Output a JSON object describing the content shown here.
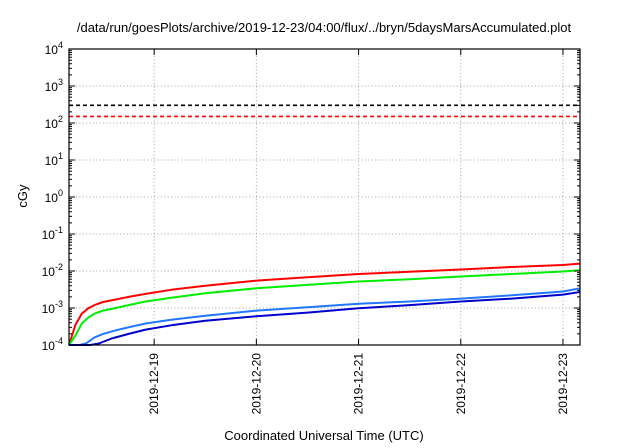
{
  "chart_data": {
    "type": "line",
    "title": "/data/run/goesPlots/archive/2019-12-23/04:00/flux/../bryn/5daysMarsAccumulated.plot",
    "xlabel": "Coordinated Universal Time (UTC)",
    "ylabel": "cGy",
    "yscale": "log",
    "ylim_exponents": [
      -4,
      4
    ],
    "yticks": [
      {
        "base": "10",
        "exp": "-4"
      },
      {
        "base": "10",
        "exp": "-3"
      },
      {
        "base": "10",
        "exp": "-2"
      },
      {
        "base": "10",
        "exp": "-1"
      },
      {
        "base": "10",
        "exp": "0"
      },
      {
        "base": "10",
        "exp": "1"
      },
      {
        "base": "10",
        "exp": "2"
      },
      {
        "base": "10",
        "exp": "3"
      },
      {
        "base": "10",
        "exp": "4"
      }
    ],
    "xlim": [
      "2019-12-18T04:00",
      "2019-12-23T04:00"
    ],
    "xticks": [
      "2019-12-19",
      "2019-12-20",
      "2019-12-21",
      "2019-12-22",
      "2019-12-23"
    ],
    "grid": true,
    "legend": "none",
    "reference_lines": [
      {
        "value": 300,
        "color": "#000000",
        "style": "dashed"
      },
      {
        "value": 150,
        "color": "#ff0000",
        "style": "dashed"
      }
    ],
    "series": [
      {
        "color": "#ff0000",
        "points": [
          [
            "2019-12-18T04:00",
            8e-05
          ],
          [
            "2019-12-18T05:30",
            0.00035
          ],
          [
            "2019-12-18T07:00",
            0.0007
          ],
          [
            "2019-12-18T08:30",
            0.00098
          ],
          [
            "2019-12-18T10:00",
            0.0012
          ],
          [
            "2019-12-18T12:00",
            0.00145
          ],
          [
            "2019-12-18T15:00",
            0.0017
          ],
          [
            "2019-12-18T18:00",
            0.002
          ],
          [
            "2019-12-18T22:00",
            0.0024
          ],
          [
            "2019-12-19T04:00",
            0.0031
          ],
          [
            "2019-12-19T12:00",
            0.004
          ],
          [
            "2019-12-20T00:00",
            0.0055
          ],
          [
            "2019-12-20T12:00",
            0.0068
          ],
          [
            "2019-12-21T00:00",
            0.0083
          ],
          [
            "2019-12-21T12:00",
            0.0095
          ],
          [
            "2019-12-22T00:00",
            0.011
          ],
          [
            "2019-12-22T12:00",
            0.0128
          ],
          [
            "2019-12-23T00:00",
            0.0145
          ],
          [
            "2019-12-23T04:00",
            0.0158
          ]
        ]
      },
      {
        "color": "#00ee00",
        "points": [
          [
            "2019-12-18T04:00",
            5e-05
          ],
          [
            "2019-12-18T05:30",
            0.00018
          ],
          [
            "2019-12-18T07:00",
            0.00038
          ],
          [
            "2019-12-18T08:30",
            0.00055
          ],
          [
            "2019-12-18T10:00",
            0.0007
          ],
          [
            "2019-12-18T12:00",
            0.00085
          ],
          [
            "2019-12-18T15:00",
            0.001
          ],
          [
            "2019-12-18T18:00",
            0.0012
          ],
          [
            "2019-12-18T22:00",
            0.0015
          ],
          [
            "2019-12-19T04:00",
            0.0019
          ],
          [
            "2019-12-19T12:00",
            0.0025
          ],
          [
            "2019-12-20T00:00",
            0.0034
          ],
          [
            "2019-12-20T12:00",
            0.0042
          ],
          [
            "2019-12-21T00:00",
            0.0052
          ],
          [
            "2019-12-21T12:00",
            0.006
          ],
          [
            "2019-12-22T00:00",
            0.0071
          ],
          [
            "2019-12-22T12:00",
            0.0083
          ],
          [
            "2019-12-23T00:00",
            0.0097
          ],
          [
            "2019-12-23T04:00",
            0.0105
          ]
        ]
      },
      {
        "color": "#2277ff",
        "points": [
          [
            "2019-12-18T04:00",
            2e-05
          ],
          [
            "2019-12-18T06:30",
            5e-05
          ],
          [
            "2019-12-18T08:00",
            0.00011
          ],
          [
            "2019-12-18T10:00",
            0.00016
          ],
          [
            "2019-12-18T12:00",
            0.0002
          ],
          [
            "2019-12-18T15:00",
            0.00025
          ],
          [
            "2019-12-18T18:00",
            0.0003
          ],
          [
            "2019-12-18T22:00",
            0.00038
          ],
          [
            "2019-12-19T04:00",
            0.00048
          ],
          [
            "2019-12-19T12:00",
            0.00062
          ],
          [
            "2019-12-20T00:00",
            0.00085
          ],
          [
            "2019-12-20T12:00",
            0.00105
          ],
          [
            "2019-12-21T00:00",
            0.0013
          ],
          [
            "2019-12-21T12:00",
            0.0015
          ],
          [
            "2019-12-22T00:00",
            0.0018
          ],
          [
            "2019-12-22T12:00",
            0.0022
          ],
          [
            "2019-12-23T00:00",
            0.0028
          ],
          [
            "2019-12-23T04:00",
            0.0034
          ]
        ]
      },
      {
        "color": "#0000cc",
        "points": [
          [
            "2019-12-18T04:00",
            1e-05
          ],
          [
            "2019-12-18T07:00",
            3.5e-05
          ],
          [
            "2019-12-18T09:00",
            7e-05
          ],
          [
            "2019-12-18T11:00",
            0.00011
          ],
          [
            "2019-12-18T14:00",
            0.00015
          ],
          [
            "2019-12-18T18:00",
            0.0002
          ],
          [
            "2019-12-18T22:00",
            0.00026
          ],
          [
            "2019-12-19T04:00",
            0.00034
          ],
          [
            "2019-12-19T12:00",
            0.00045
          ],
          [
            "2019-12-20T00:00",
            0.0006
          ],
          [
            "2019-12-20T12:00",
            0.00075
          ],
          [
            "2019-12-21T00:00",
            0.00098
          ],
          [
            "2019-12-21T12:00",
            0.0012
          ],
          [
            "2019-12-22T00:00",
            0.0015
          ],
          [
            "2019-12-22T12:00",
            0.0018
          ],
          [
            "2019-12-23T00:00",
            0.0023
          ],
          [
            "2019-12-23T04:00",
            0.0027
          ]
        ]
      }
    ]
  }
}
